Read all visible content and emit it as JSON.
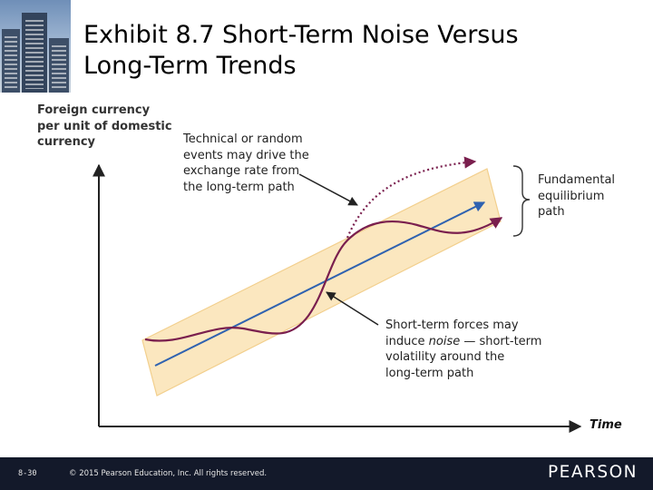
{
  "title_lines": [
    "Exhibit 8.7   Short-Term Noise Versus",
    "Long-Term Trends"
  ],
  "y_axis_label_lines": [
    "Foreign currency",
    "per unit of domestic",
    "currency"
  ],
  "x_axis_label": "Time",
  "annotations": {
    "technical": [
      "Technical or random",
      "events may drive the",
      "exchange rate from",
      "the long-term path"
    ],
    "fundamental": [
      "Fundamental",
      "equilibrium",
      "path"
    ],
    "noise": {
      "line1": "Short-term forces may",
      "line2_before": "induce ",
      "line2_emphasis": "noise",
      "line2_after": " — short-term",
      "line3": "volatility around the",
      "line4": "long-term path"
    }
  },
  "footer": {
    "slide_number": "8-30",
    "copyright": "© 2015 Pearson Education, Inc. All rights reserved.",
    "brand": "PEARSON"
  },
  "colors": {
    "band": "#fbe7bf",
    "trend_line": "#2f62b0",
    "noise_curve": "#7a1f4e",
    "axes": "#222222",
    "footer_bg": "#13192a"
  },
  "icons": [
    "building-photo-thumbnail"
  ]
}
